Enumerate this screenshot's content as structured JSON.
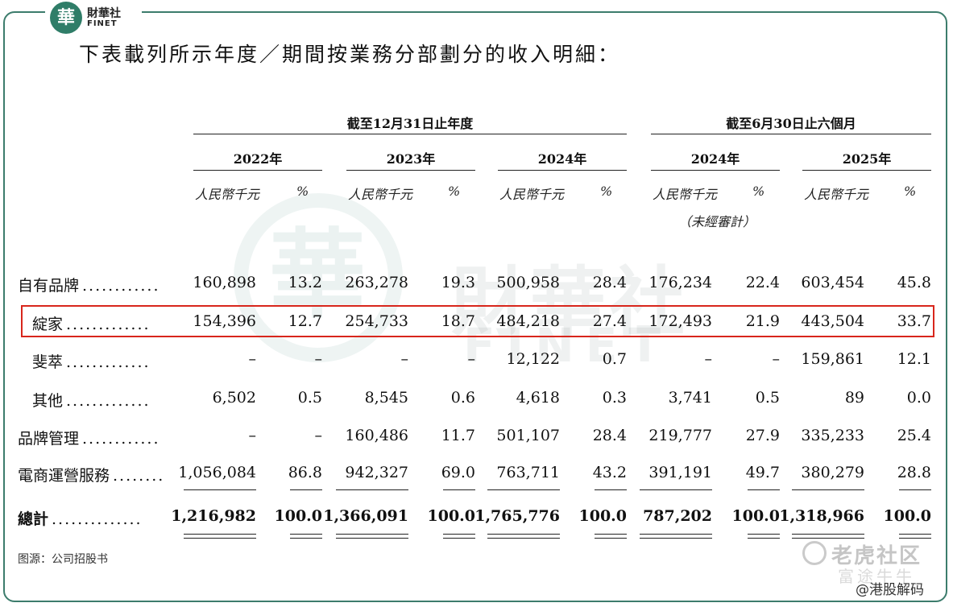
{
  "logo": {
    "seal": "華",
    "cn": "財華社",
    "en": "FINET"
  },
  "watermark": {
    "seal": "華",
    "cn": "財華社",
    "en": "FINET"
  },
  "heading": "下表載列所示年度／期間按業務分部劃分的收入明細：",
  "groups": [
    {
      "label": "截至12月31日止年度"
    },
    {
      "label": "截至6月30日止六個月"
    }
  ],
  "years": [
    "2022年",
    "2023年",
    "2024年",
    "2024年",
    "2025年"
  ],
  "unit_rmb": "人民幣千元",
  "unit_pct": "%",
  "unaudited": "（未經審計）",
  "rows": [
    {
      "label": "自有品牌",
      "dots": "............",
      "values": [
        "160,898",
        "13.2",
        "263,278",
        "19.3",
        "500,958",
        "28.4",
        "176,234",
        "22.4",
        "603,454",
        "45.8"
      ]
    },
    {
      "label": "綻家",
      "dots": ".............",
      "values": [
        "154,396",
        "12.7",
        "254,733",
        "18.7",
        "484,218",
        "27.4",
        "172,493",
        "21.9",
        "443,504",
        "33.7"
      ]
    },
    {
      "label": "斐萃",
      "dots": ".............",
      "values": [
        "–",
        "–",
        "–",
        "–",
        "12,122",
        "0.7",
        "–",
        "–",
        "159,861",
        "12.1"
      ]
    },
    {
      "label": "其他",
      "dots": ".............",
      "values": [
        "6,502",
        "0.5",
        "8,545",
        "0.6",
        "4,618",
        "0.3",
        "3,741",
        "0.5",
        "89",
        "0.0"
      ]
    },
    {
      "label": "品牌管理",
      "dots": "............",
      "values": [
        "–",
        "–",
        "160,486",
        "11.7",
        "501,107",
        "28.4",
        "219,777",
        "27.9",
        "335,233",
        "25.4"
      ]
    },
    {
      "label": "電商運營服務",
      "dots": "........",
      "values": [
        "1,056,084",
        "86.8",
        "942,327",
        "69.0",
        "763,711",
        "43.2",
        "391,191",
        "49.7",
        "380,279",
        "28.8"
      ]
    },
    {
      "label": "總計",
      "dots": "..............",
      "values": [
        "1,216,982",
        "100.0",
        "1,366,091",
        "100.0",
        "1,765,776",
        "100.0",
        "787,202",
        "100.0",
        "1,318,966",
        "100.0"
      ]
    }
  ],
  "source": "图源：公司招股书",
  "branding": {
    "cn": "老虎社区",
    "cn2": "富途牛牛",
    "handle": "@港股解码"
  },
  "colors": {
    "frame": "#3c7c6c",
    "highlight": "#d8261c",
    "seal": "#2f7d68"
  }
}
